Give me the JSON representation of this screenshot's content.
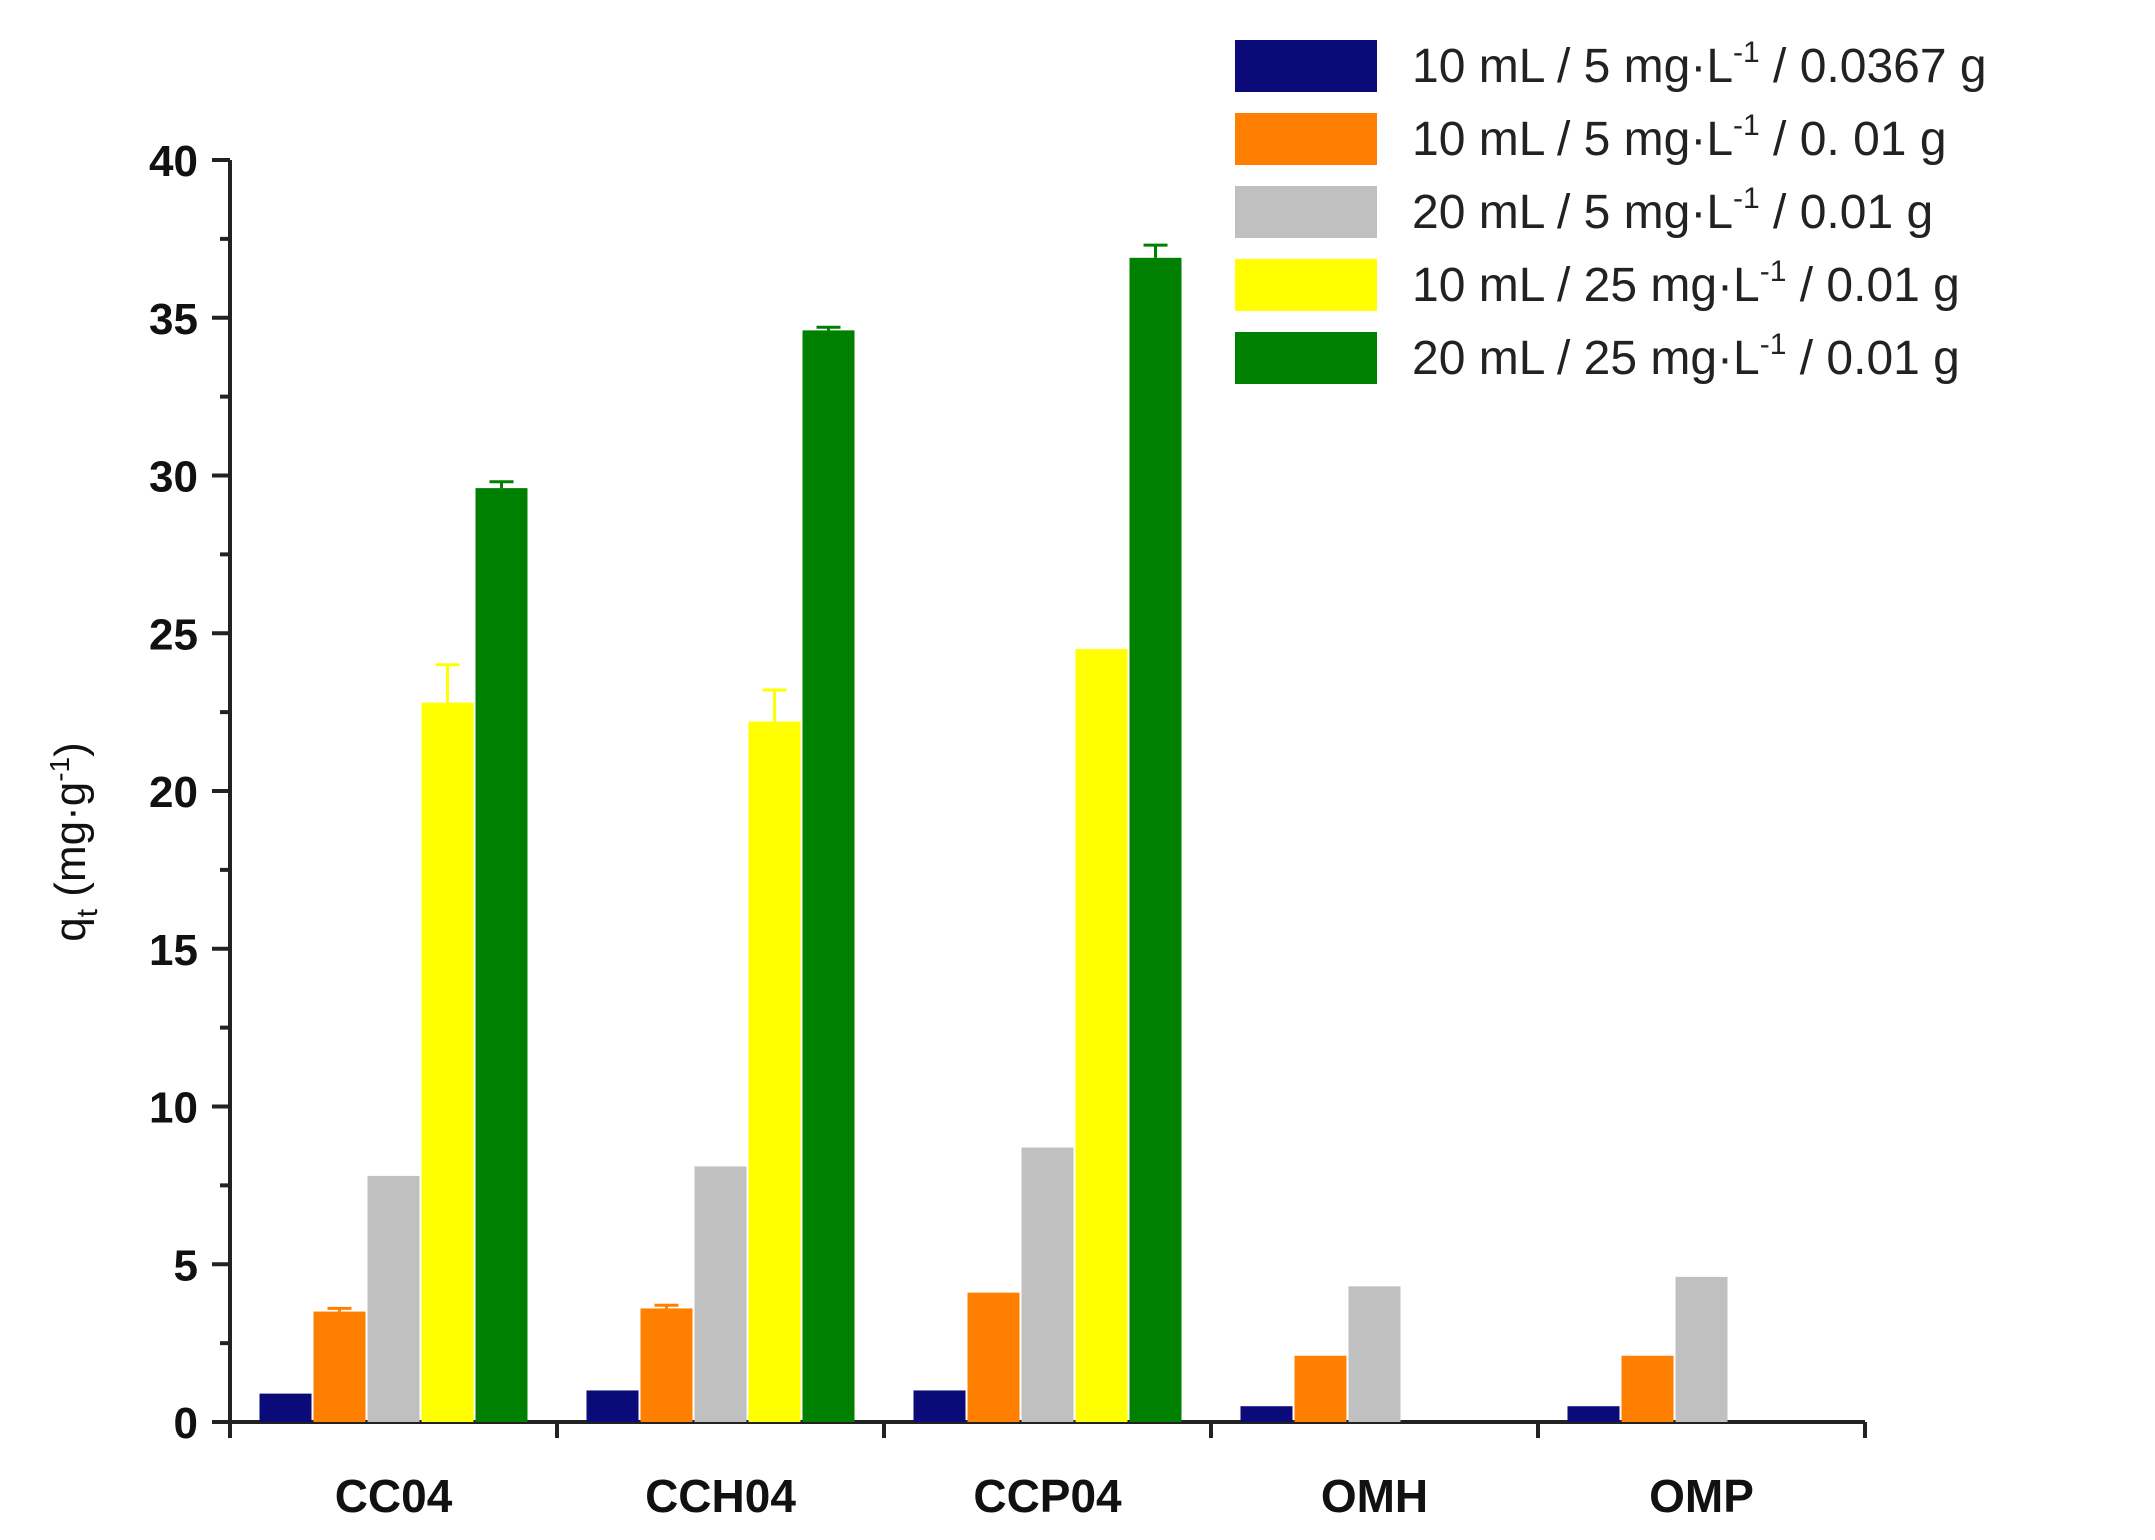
{
  "chart_data": {
    "type": "bar",
    "title": "",
    "xlabel": "",
    "ylabel": "qt (mg·g-1)",
    "ylabel_main": "q",
    "ylabel_sub": "t",
    "ylabel_unit": "(mg·g",
    "ylabel_sup": "-1",
    "ylabel_close": ")",
    "ylim": [
      0,
      40
    ],
    "yticks": [
      0,
      5,
      10,
      15,
      20,
      25,
      30,
      35,
      40
    ],
    "categories": [
      "CC04",
      "CCH04",
      "CCP04",
      "OMH",
      "OMP"
    ],
    "legend_position": "top-right",
    "series": [
      {
        "name": "10 mL / 5 mg·L-1 / 0.0367 g",
        "legend_pre": "10 mL / 5 mg·L",
        "legend_sup": "-1",
        "legend_post": " / 0.0367 g",
        "color": "#0a0a78",
        "values": [
          0.9,
          1.0,
          1.0,
          0.5,
          0.5
        ],
        "errors": [
          0,
          0,
          0,
          0,
          0
        ]
      },
      {
        "name": "10 mL / 5 mg·L-1 / 0. 01 g",
        "legend_pre": "10 mL / 5 mg·L",
        "legend_sup": "-1",
        "legend_post": " / 0. 01 g",
        "color": "#ff8000",
        "values": [
          3.5,
          3.6,
          4.1,
          2.1,
          2.1
        ],
        "errors": [
          0.1,
          0.1,
          0,
          0,
          0
        ]
      },
      {
        "name": "20 mL / 5 mg·L-1 / 0.01 g",
        "legend_pre": "20 mL / 5 mg·L",
        "legend_sup": "-1",
        "legend_post": " / 0.01 g",
        "color": "#c0c0c0",
        "values": [
          7.8,
          8.1,
          8.7,
          4.3,
          4.6
        ],
        "errors": [
          0,
          0,
          0,
          0,
          0
        ]
      },
      {
        "name": "10 mL / 25 mg·L-1 / 0.01 g",
        "legend_pre": "10 mL / 25 mg·L",
        "legend_sup": "-1",
        "legend_post": " / 0.01 g",
        "color": "#ffff00",
        "values": [
          22.8,
          22.2,
          24.5,
          null,
          null
        ],
        "errors": [
          1.2,
          1.0,
          0,
          0,
          0
        ]
      },
      {
        "name": "20 mL / 25 mg·L-1 / 0.01 g",
        "legend_pre": "20 mL / 25 mg·L",
        "legend_sup": "-1",
        "legend_post": " / 0.01 g",
        "color": "#008000",
        "values": [
          29.6,
          34.6,
          36.9,
          null,
          null
        ],
        "errors": [
          0.2,
          0.1,
          0.4,
          0,
          0
        ]
      }
    ]
  }
}
